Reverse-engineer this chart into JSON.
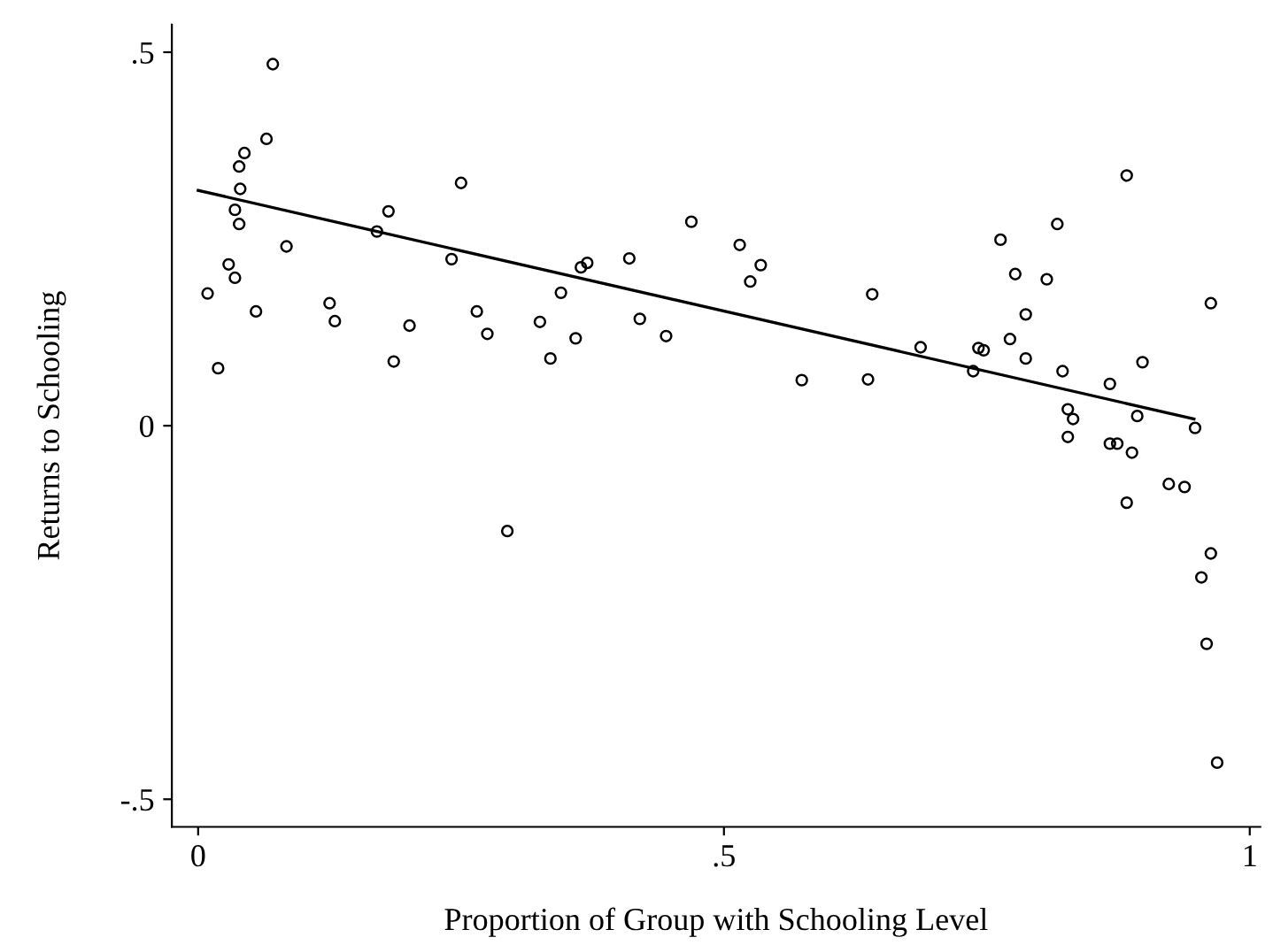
{
  "chart_data": {
    "type": "scatter",
    "xlabel": "Proportion of Group with Schooling Level",
    "ylabel": "Returns to Schooling",
    "marker": "circle",
    "grid": false,
    "legend": false,
    "xlim": [
      -0.025,
      1.01
    ],
    "ylim": [
      -0.537,
      0.537
    ],
    "xticks": [
      0,
      {
        "value": 0.5,
        "label": ".5"
      },
      1
    ],
    "yticks": [
      {
        "value": -0.5,
        "label": "-.5"
      },
      0,
      {
        "value": 0.5,
        "label": ".5"
      }
    ],
    "series": [
      {
        "color": "#000000",
        "x": [
          0.009,
          0.019,
          0.029,
          0.035,
          0.035,
          0.039,
          0.04,
          0.039,
          0.044,
          0.055,
          0.065,
          0.071,
          0.084,
          0.125,
          0.13,
          0.17,
          0.181,
          0.186,
          0.201,
          0.241,
          0.25,
          0.265,
          0.275,
          0.294,
          0.325,
          0.335,
          0.345,
          0.359,
          0.364,
          0.37,
          0.41,
          0.42,
          0.445,
          0.469,
          0.515,
          0.525,
          0.535,
          0.574,
          0.637,
          0.641,
          0.687,
          0.737,
          0.742,
          0.747,
          0.763,
          0.772,
          0.777,
          0.787,
          0.787,
          0.807,
          0.817,
          0.822,
          0.827,
          0.827,
          0.832,
          0.867,
          0.867,
          0.874,
          0.883,
          0.883,
          0.888,
          0.893,
          0.898,
          0.923,
          0.938,
          0.948,
          0.954,
          0.959,
          0.963,
          0.963,
          0.969
        ],
        "values": [
          0.177,
          0.077,
          0.216,
          0.198,
          0.289,
          0.27,
          0.317,
          0.347,
          0.365,
          0.153,
          0.384,
          0.484,
          0.24,
          0.164,
          0.14,
          0.26,
          0.287,
          0.086,
          0.134,
          0.223,
          0.325,
          0.153,
          0.123,
          -0.141,
          0.139,
          0.09,
          0.178,
          0.117,
          0.212,
          0.218,
          0.224,
          0.143,
          0.12,
          0.273,
          0.242,
          0.193,
          0.215,
          0.061,
          0.062,
          0.176,
          0.105,
          0.073,
          0.104,
          0.101,
          0.249,
          0.116,
          0.203,
          0.149,
          0.09,
          0.196,
          0.27,
          0.073,
          0.022,
          -0.015,
          0.009,
          0.056,
          -0.024,
          -0.024,
          0.335,
          -0.103,
          -0.036,
          0.013,
          0.085,
          -0.078,
          -0.082,
          -0.003,
          -0.203,
          -0.292,
          0.164,
          -0.171,
          -0.451
        ]
      },
      {
        "type": "line",
        "color": "#000000",
        "x": [
          0,
          0.947
        ],
        "values": [
          0.315,
          0.009
        ],
        "marker": "none",
        "line_style": "solid"
      }
    ]
  }
}
